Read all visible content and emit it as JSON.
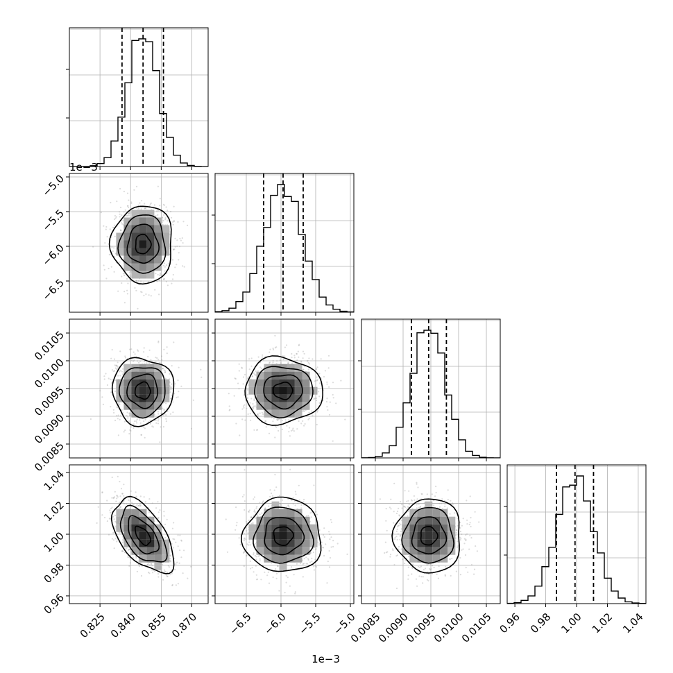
{
  "chart_data": {
    "type": "corner",
    "params": [
      {
        "mean": 0.846,
        "sd": 0.0075,
        "ticks": [
          "0.825",
          "0.840",
          "0.855",
          "0.870"
        ],
        "tick_values": [
          0.825,
          0.84,
          0.855,
          0.87
        ],
        "range": [
          0.81,
          0.878
        ],
        "quantiles": [
          0.8358,
          0.8461,
          0.8561
        ],
        "offset": ""
      },
      {
        "mean": -5.97,
        "sd": 0.28,
        "ticks": [
          "−6.5",
          "−6.0",
          "−5.5",
          "−5.0"
        ],
        "tick_values": [
          -6.5,
          -6.0,
          -5.5,
          -5.0
        ],
        "range": [
          -6.95,
          -4.95
        ],
        "quantiles": [
          -6.25,
          -5.97,
          -5.68
        ],
        "offset": "1e−3"
      },
      {
        "mean": 0.00946,
        "sd": 0.0003,
        "ticks": [
          "0.0085",
          "0.0090",
          "0.0095",
          "0.0100",
          "0.0105"
        ],
        "tick_values": [
          0.0085,
          0.009,
          0.0095,
          0.01,
          0.0105
        ],
        "range": [
          0.00825,
          0.01075
        ],
        "quantiles": [
          0.00915,
          0.00946,
          0.00978
        ],
        "offset": ""
      },
      {
        "mean": 0.999,
        "sd": 0.012,
        "ticks": [
          "0.96",
          "0.98",
          "1.00",
          "1.02",
          "1.04"
        ],
        "tick_values": [
          0.96,
          0.98,
          1.0,
          1.02,
          1.04
        ],
        "range": [
          0.955,
          1.045
        ],
        "quantiles": [
          0.987,
          0.999,
          1.011
        ],
        "offset": ""
      }
    ],
    "correlations": [
      [
        0,
        1,
        0
      ],
      [
        1,
        0,
        0
      ],
      [
        2,
        0,
        0
      ],
      [
        2,
        1,
        0
      ],
      [
        3,
        0,
        -0.55
      ],
      [
        3,
        1,
        0
      ],
      [
        3,
        2,
        0
      ]
    ],
    "histogram": {
      "bins": 20,
      "style": "step",
      "color": "#000000"
    },
    "quantile_lines": "dashed",
    "contour_levels": 4,
    "grid": true
  }
}
